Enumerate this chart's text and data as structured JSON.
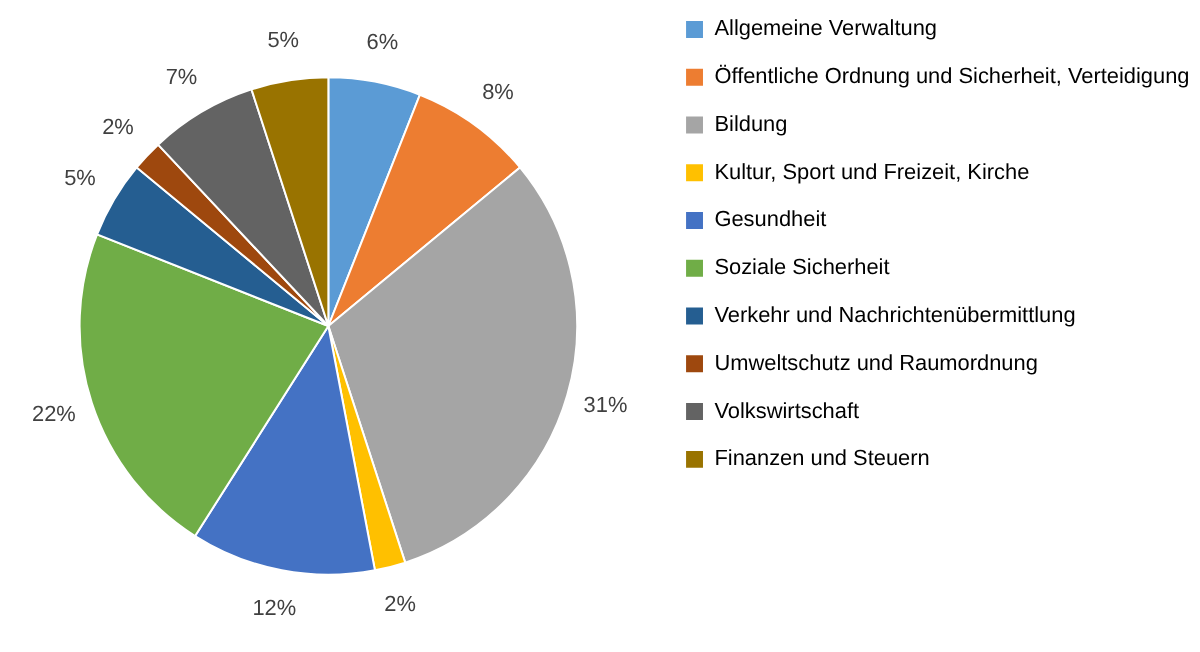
{
  "chart_data": {
    "type": "pie",
    "categories": [
      "Allgemeine Verwaltung",
      "Öffentliche Ordnung und Sicherheit, Verteidigung",
      "Bildung",
      "Kultur, Sport und Freizeit, Kirche",
      "Gesundheit",
      "Soziale Sicherheit",
      "Verkehr und Nachrichtenübermittlung",
      "Umweltschutz und Raumordnung",
      "Volkswirtschaft",
      "Finanzen und Steuern"
    ],
    "values": [
      6,
      8,
      31,
      2,
      12,
      22,
      5,
      2,
      7,
      5
    ],
    "value_labels": [
      "6%",
      "8%",
      "31%",
      "2%",
      "12%",
      "22%",
      "5%",
      "2%",
      "7%",
      "5%"
    ],
    "colors": [
      "#5b9bd5",
      "#ed7d31",
      "#a5a5a5",
      "#ffc000",
      "#4472c4",
      "#70ad47",
      "#255e91",
      "#9e480e",
      "#636363",
      "#997300"
    ],
    "legend": "right"
  }
}
